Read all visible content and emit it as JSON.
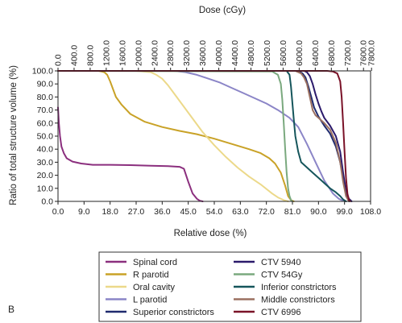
{
  "panel_label": "B",
  "chart_data": {
    "type": "line",
    "title": "",
    "xlabel": "Relative dose (%)",
    "ylabel": "Ratio of total structure volume (%)",
    "x2label": "Dose (cGy)",
    "xlim": [
      0,
      108
    ],
    "ylim": [
      0,
      100
    ],
    "grid": false,
    "legend_position": "bottom",
    "x_ticks": [
      0,
      9,
      18,
      27,
      36,
      45,
      54,
      63,
      72,
      81,
      90,
      99,
      108
    ],
    "x_tick_labels": [
      "0.0",
      "9.0",
      "18.0",
      "27.0",
      "36.0",
      "45.0",
      "54.0",
      "63.0",
      "72.0",
      "81.0",
      "90.0",
      "99.0",
      "108.0"
    ],
    "y_ticks": [
      0,
      10,
      20,
      30,
      40,
      50,
      60,
      70,
      80,
      90,
      100
    ],
    "y_tick_labels": [
      "0.0",
      "10.0",
      "20.0",
      "30.0",
      "40.0",
      "50.0",
      "60.0",
      "70.0",
      "80.0",
      "90.0",
      "100.0"
    ],
    "x2_ticks": [
      0,
      400,
      800,
      1200,
      1600,
      2000,
      2400,
      2800,
      3200,
      3600,
      4000,
      4400,
      4800,
      5200,
      5600,
      6000,
      6400,
      6800,
      7200,
      7600,
      7800
    ],
    "x2_tick_labels": [
      "0.0",
      "400.0",
      "800.0",
      "1200.0",
      "1600.0",
      "2000.0",
      "2400.0",
      "2800.0",
      "3200.0",
      "3600.0",
      "4000.0",
      "4400.0",
      "4800.0",
      "5200.0",
      "5600.0",
      "6000.0",
      "6400.0",
      "6800.0",
      "7200.0",
      "7600.0",
      "7800.0"
    ],
    "x2_scale_cgy_per_percent": 72,
    "series": [
      {
        "name": "Spinal cord",
        "color": "#8b2f7e",
        "x": [
          0,
          0.3,
          0.7,
          1.2,
          2,
          3,
          5,
          8,
          12,
          18,
          25,
          32,
          38,
          42,
          43.5,
          45,
          46.5,
          48,
          49,
          50
        ],
        "y": [
          72,
          60,
          50,
          42,
          37,
          33,
          30.5,
          29,
          28,
          28,
          27.8,
          27.3,
          27,
          26.5,
          25,
          15,
          6,
          2,
          0.5,
          0
        ]
      },
      {
        "name": "R parotid",
        "color": "#c9a227",
        "x": [
          0,
          14,
          16,
          17,
          18,
          20,
          22,
          25,
          30,
          36,
          42,
          48,
          54,
          60,
          66,
          70,
          73,
          75,
          77,
          78.5,
          79.5,
          80.5,
          81.5
        ],
        "y": [
          100,
          100,
          99,
          97,
          92,
          80,
          74,
          67,
          61,
          57,
          54,
          51.5,
          48,
          44,
          40,
          37,
          33,
          29,
          22,
          12,
          4,
          1,
          0
        ]
      },
      {
        "name": "Oral cavity",
        "color": "#ecd98a",
        "x": [
          0,
          27,
          32,
          34,
          36,
          38,
          41,
          44,
          47,
          50,
          54,
          58,
          62,
          66,
          70,
          74,
          76,
          78,
          79.5
        ],
        "y": [
          100,
          100,
          99,
          97,
          94,
          89,
          80,
          71,
          62,
          53,
          43,
          34,
          26,
          19,
          13,
          6,
          3,
          1,
          0
        ]
      },
      {
        "name": "L parotid",
        "color": "#8b85c7",
        "x": [
          0,
          40,
          44,
          48,
          52,
          56,
          60,
          64,
          68,
          72,
          76,
          80,
          83,
          86,
          89,
          92,
          95,
          97,
          98.5,
          99.5
        ],
        "y": [
          100,
          100,
          99,
          97,
          94,
          91,
          87,
          83,
          79,
          75,
          70,
          64,
          57,
          44,
          30,
          16,
          6,
          2,
          0.5,
          0
        ]
      },
      {
        "name": "Superior constrictors",
        "color": "#1f2a6e",
        "x": [
          0,
          83,
          84.5,
          85.5,
          86.5,
          87.5,
          88.5,
          90,
          92,
          94,
          96,
          97.5,
          98.5,
          99.5,
          100.5
        ],
        "y": [
          100,
          100,
          98,
          95,
          88,
          80,
          72,
          65,
          58,
          52,
          42,
          30,
          18,
          6,
          0
        ]
      },
      {
        "name": "CTV 5940",
        "color": "#2b1a6b",
        "x": [
          0,
          85,
          86,
          87,
          88,
          89,
          90,
          91,
          92,
          94,
          96,
          97.5,
          98.5,
          99.5,
          100.5,
          101.5
        ],
        "y": [
          100,
          100,
          99,
          96,
          90,
          82,
          75,
          69,
          64,
          58,
          50,
          38,
          22,
          8,
          2,
          0
        ]
      },
      {
        "name": "CTV 54Gy",
        "color": "#7aa97e",
        "x": [
          0,
          74,
          76,
          77,
          77.5,
          78,
          78.5,
          79,
          79.5,
          80,
          80.5,
          81
        ],
        "y": [
          100,
          99.5,
          97,
          90,
          78,
          60,
          40,
          22,
          10,
          4,
          1,
          0
        ]
      },
      {
        "name": "Inferior constrictors",
        "color": "#15555b",
        "x": [
          0,
          79,
          80,
          80.5,
          81,
          81.5,
          82,
          83,
          84,
          86,
          88,
          90,
          92,
          94,
          96,
          97.5,
          98.5,
          99.5
        ],
        "y": [
          100,
          100,
          97,
          88,
          75,
          62,
          50,
          38,
          30,
          26,
          22,
          18,
          14,
          10,
          7,
          4,
          1.5,
          0
        ]
      },
      {
        "name": "Middle constrictors",
        "color": "#9b7060",
        "x": [
          0,
          82,
          84,
          85,
          86,
          87,
          88,
          89,
          90,
          92,
          94,
          96,
          97.5,
          98.5,
          99.5,
          100.5
        ],
        "y": [
          100,
          100,
          98,
          95,
          90,
          80,
          70,
          66,
          64,
          60,
          55,
          45,
          30,
          15,
          4,
          0
        ]
      },
      {
        "name": "CTV 6996",
        "color": "#7a1228",
        "x": [
          0,
          93,
          95,
          96.5,
          97.5,
          98,
          98.5,
          99,
          99.5,
          100,
          100.5,
          101
        ],
        "y": [
          100,
          100,
          99.5,
          98,
          92,
          80,
          60,
          38,
          18,
          6,
          1,
          0
        ]
      }
    ],
    "legend_order": [
      0,
      5,
      1,
      6,
      2,
      7,
      3,
      8,
      4,
      9
    ]
  }
}
